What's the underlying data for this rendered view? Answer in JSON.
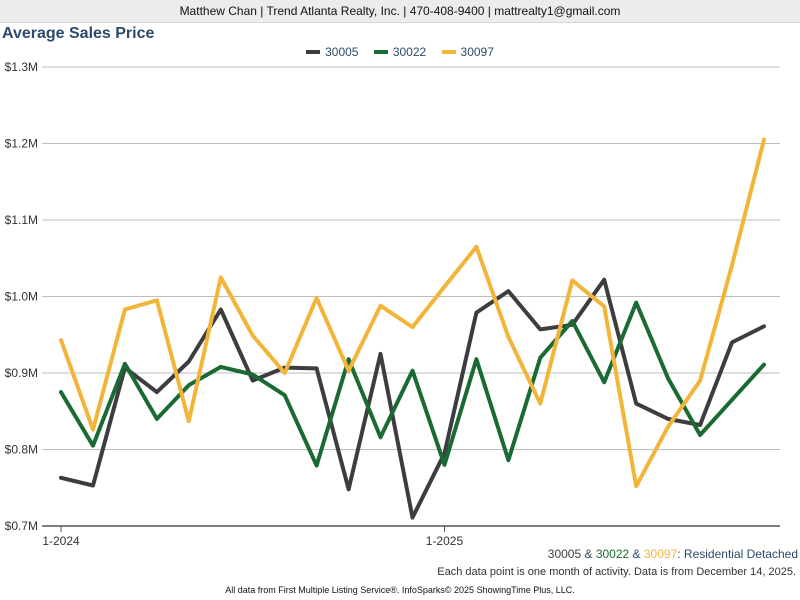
{
  "header": {
    "contact": "Matthew Chan | Trend Atlanta Realty, Inc. | 470-408-9400 | mattrealty1@gmail.com"
  },
  "colors": {
    "s30005": "#3d3d3f",
    "s30022": "#1a6b33",
    "s30097": "#f2b53a",
    "accent": "#2c4a6b"
  },
  "chart_data": {
    "type": "line",
    "title": "Average Sales Price",
    "xlabel": "",
    "ylabel": "",
    "ylim": [
      700000,
      1300000
    ],
    "yticks": [
      700000,
      800000,
      900000,
      1000000,
      1100000,
      1200000,
      1300000
    ],
    "ytick_labels": [
      "$0.7M",
      "$0.8M",
      "$0.9M",
      "$1.0M",
      "$1.1M",
      "$1.2M",
      "$1.3M"
    ],
    "x_start": "2024-01",
    "x_tick_labels": [
      {
        "index": 0,
        "label": "1-2024"
      },
      {
        "index": 12,
        "label": "1-2025"
      }
    ],
    "legend_position": "top-center",
    "series": [
      {
        "name": "30005",
        "color": "#3d3d3f",
        "values": [
          763000,
          753000,
          907000,
          875000,
          915000,
          983000,
          890000,
          907000,
          906000,
          748000,
          925000,
          711000,
          795000,
          979000,
          1007000,
          957000,
          963000,
          1022000,
          860000,
          840000,
          832000,
          940000,
          961000
        ]
      },
      {
        "name": "30022",
        "color": "#1a6b33",
        "values": [
          875000,
          805000,
          912000,
          840000,
          884000,
          908000,
          898000,
          871000,
          779000,
          918000,
          816000,
          903000,
          780000,
          918000,
          786000,
          920000,
          968000,
          888000,
          992000,
          893000,
          819000,
          865000,
          911000
        ]
      },
      {
        "name": "30097",
        "color": "#f2b53a",
        "values": [
          943000,
          826000,
          983000,
          995000,
          837000,
          1025000,
          949000,
          900000,
          998000,
          903000,
          988000,
          960000,
          1013000,
          1065000,
          947000,
          860000,
          1021000,
          987000,
          752000,
          830000,
          890000,
          1041000,
          1205000
        ]
      }
    ]
  },
  "footer": {
    "series_a": "30005",
    "amp1": " & ",
    "series_b": "30022",
    "amp2": " & ",
    "series_c": "30097",
    "suffix": ": Residential Detached",
    "note": "Each data point is one month of activity. Data is from December 14, 2025.",
    "credit": "All data from First Multiple Listing Service®. InfoSparks© 2025 ShowingTime Plus, LLC."
  }
}
